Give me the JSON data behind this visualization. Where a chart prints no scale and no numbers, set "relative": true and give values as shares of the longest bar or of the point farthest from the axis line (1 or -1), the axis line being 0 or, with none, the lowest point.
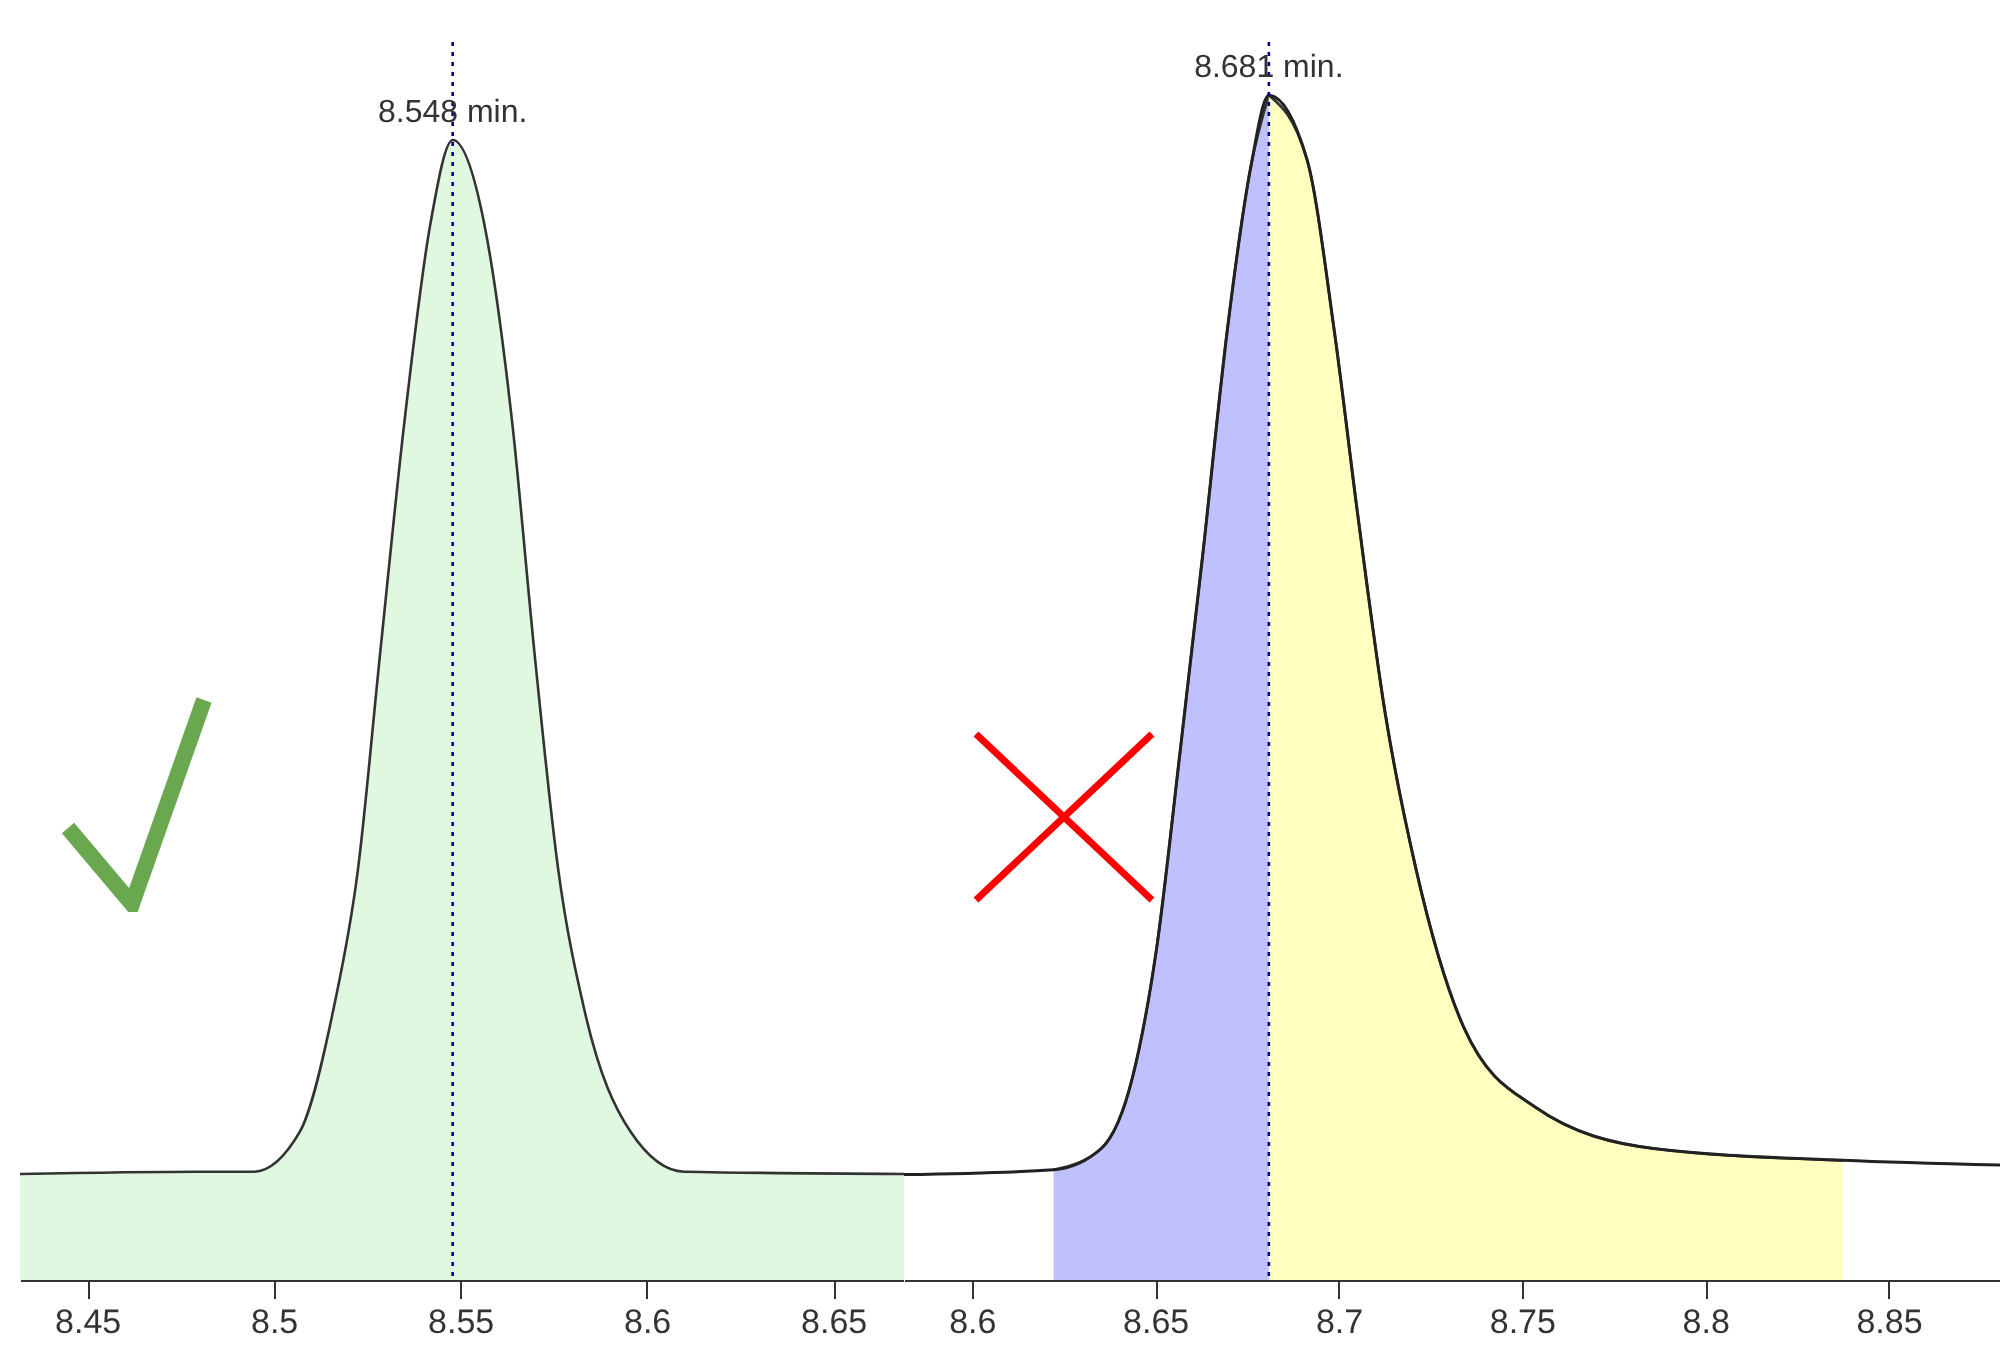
{
  "chart_data": [
    {
      "type": "area",
      "relative": true,
      "tick_labels": "x",
      "xlim": [
        8.432,
        8.669
      ],
      "xticks": [
        8.45,
        8.5,
        8.55,
        8.6,
        8.65
      ],
      "series": [
        {
          "color": "#e0f8e0",
          "x": [
            8.432,
            8.48,
            8.4946,
            8.507,
            8.516,
            8.5226,
            8.5285,
            8.535,
            8.542,
            8.548,
            8.5565,
            8.564,
            8.57,
            8.5763,
            8.5833,
            8.5957,
            8.61,
            8.669
          ],
          "values": [
            0.093,
            0.095,
            0.095,
            0.13,
            0.237,
            0.36,
            0.548,
            0.751,
            0.926,
            1,
            0.926,
            0.751,
            0.548,
            0.36,
            0.237,
            0.13,
            0.095,
            0.093
          ]
        }
      ],
      "ref_lines": [
        {
          "axis": "x",
          "value": 8.548,
          "label": "8.548 min.",
          "color": "#00008b",
          "line_style": "dotted"
        }
      ]
    },
    {
      "type": "area",
      "relative": true,
      "tick_labels": "x",
      "xlim": [
        8.5815,
        8.8804
      ],
      "xticks": [
        8.6,
        8.65,
        8.7,
        8.75,
        8.8,
        8.85
      ],
      "series": [
        {
          "color": "#c0c0ff",
          "x": [
            8.6223,
            8.6353,
            8.6439,
            8.6503,
            8.6568,
            8.663,
            8.6696,
            8.6761,
            8.681
          ],
          "values": [
            0.093,
            0.111,
            0.172,
            0.278,
            0.446,
            0.613,
            0.8,
            0.94,
            1
          ]
        },
        {
          "color": "#ffffc0",
          "x": [
            8.681,
            8.6913,
            8.6989,
            8.7052,
            8.7127,
            8.7212,
            8.7342,
            8.7536,
            8.7859,
            8.8375
          ],
          "values": [
            1,
            0.947,
            0.8,
            0.647,
            0.479,
            0.346,
            0.213,
            0.146,
            0.111,
            0.101
          ]
        },
        {
          "type": "line",
          "color": "#222222",
          "x": [
            8.5815,
            8.6223,
            8.6353,
            8.6439,
            8.6503,
            8.6568,
            8.663,
            8.6696,
            8.6761,
            8.681,
            8.6913,
            8.6989,
            8.7052,
            8.7127,
            8.7212,
            8.7342,
            8.7536,
            8.7859,
            8.8375,
            8.8804
          ],
          "values": [
            0.089,
            0.093,
            0.111,
            0.172,
            0.278,
            0.446,
            0.613,
            0.8,
            0.94,
            1,
            0.947,
            0.8,
            0.647,
            0.479,
            0.346,
            0.213,
            0.146,
            0.111,
            0.101,
            0.097
          ]
        }
      ],
      "ref_lines": [
        {
          "axis": "x",
          "value": 8.681,
          "label": "8.681 min.",
          "color": "#00008b",
          "line_style": "dotted"
        }
      ]
    }
  ]
}
